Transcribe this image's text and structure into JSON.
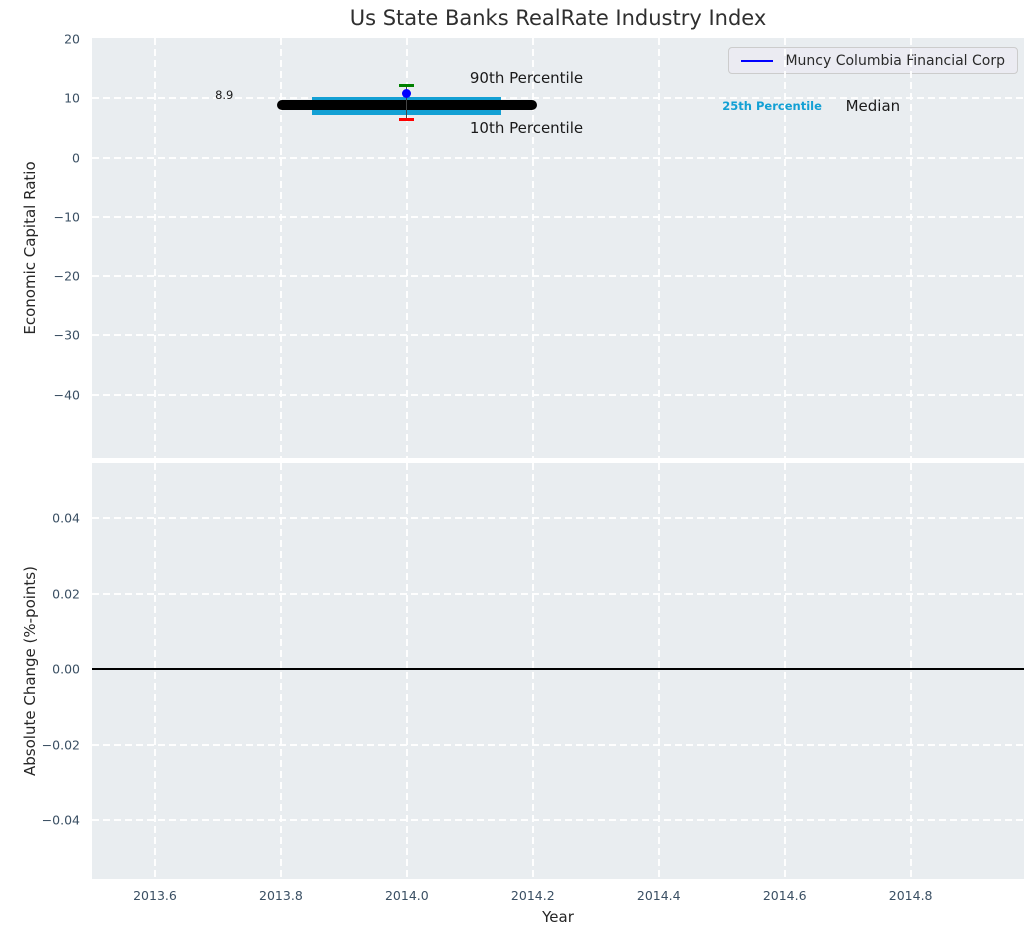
{
  "figure": {
    "title": "Us State Banks RealRate Industry Index"
  },
  "colors": {
    "figure_background": "#ffffff",
    "axes_background": "#e9edf0",
    "grid": "#ffffff",
    "tick_label": "#3a4f63",
    "axis_label": "#262626",
    "title": "#2f2f2f",
    "median_line": "#000000",
    "iqr_box": "#13a0d4",
    "p90_cap": "#008000",
    "p10_cap": "#ff0000",
    "company_marker": "#0000ff",
    "whisker": "#444444",
    "zero_line": "#000000",
    "legend_background": "#ebebf2",
    "legend_border": "#cccccc"
  },
  "legend": {
    "entries": [
      {
        "label": "Muncy Columbia Financial Corp",
        "color": "#0000ff",
        "swatch": "line"
      }
    ]
  },
  "chart_data": [
    {
      "type": "scatter",
      "panel": "top",
      "title": "Us State Banks RealRate Industry Index",
      "ylabel": "Economic Capital Ratio",
      "xlabel": "",
      "xlim": [
        2013.5,
        2014.98
      ],
      "ylim": [
        -50.7,
        20.2
      ],
      "yticks": [
        20,
        10,
        0,
        -10,
        -20,
        -30,
        -40
      ],
      "xticks": [
        2013.6,
        2013.8,
        2014.0,
        2014.2,
        2014.4,
        2014.6,
        2014.8
      ],
      "show_xtick_labels": false,
      "grid": true,
      "legend_position": "upper right",
      "series": [
        {
          "name": "Muncy Columbia Financial Corp",
          "type": "scatter",
          "x": [
            2014.0
          ],
          "y": [
            10.9
          ]
        }
      ],
      "industry_distribution": {
        "x": 2014.0,
        "median": 8.9,
        "median_span": [
          2013.8,
          2014.2
        ],
        "p25": 7.2,
        "p75": 10.2,
        "box_span": [
          2013.85,
          2014.15
        ],
        "p10": 6.4,
        "p90": 12.1,
        "cap_halfwidth_years": 0.012
      },
      "annotations": [
        {
          "text": "8.9",
          "x": 2013.71,
          "y": 10.5,
          "size": "small",
          "color": "#1a1a1a",
          "bold": false
        },
        {
          "text": "90th Percentile",
          "x": 2014.19,
          "y": 13.4,
          "size": "normal",
          "color": "#1a1a1a",
          "bold": false
        },
        {
          "text": "10th Percentile",
          "x": 2014.19,
          "y": 5.0,
          "size": "normal",
          "color": "#1a1a1a",
          "bold": false
        },
        {
          "text": "25th Percentile",
          "x": 2014.58,
          "y": 8.7,
          "size": "small",
          "color": "#13a0d4",
          "bold": true
        },
        {
          "text": "Median",
          "x": 2014.74,
          "y": 8.7,
          "size": "normal",
          "color": "#1a1a1a",
          "bold": false
        }
      ]
    },
    {
      "type": "line",
      "panel": "bottom",
      "ylabel": "Absolute Change (%-points)",
      "xlabel": "Year",
      "xlim": [
        2013.5,
        2014.98
      ],
      "ylim": [
        -0.0556,
        0.0546
      ],
      "yticks": [
        0.04,
        0.02,
        0.0,
        -0.02,
        -0.04
      ],
      "ytick_decimals": 2,
      "xticks": [
        2013.6,
        2013.8,
        2014.0,
        2014.2,
        2014.4,
        2014.6,
        2014.8
      ],
      "xtick_decimals": 1,
      "show_xtick_labels": true,
      "grid": true,
      "zero_line": 0.0,
      "series": []
    }
  ]
}
